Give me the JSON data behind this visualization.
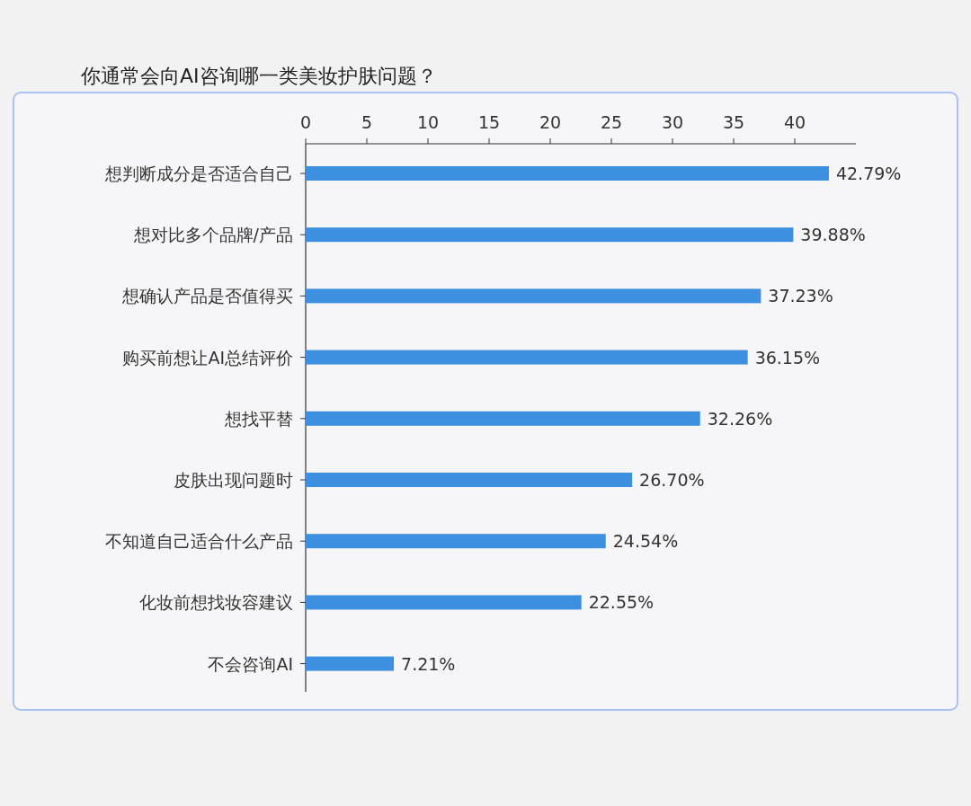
{
  "chart_data": {
    "type": "bar",
    "orientation": "horizontal",
    "title": "你通常会向AI咨询哪一类美妆护肤问题？",
    "categories": [
      "想判断成分是否适合自己",
      "想对比多个品牌/产品",
      "想确认产品是否值得买",
      "购买前想让AI总结评价",
      "想找平替",
      "皮肤出现问题时",
      "不知道自己适合什么产品",
      "化妆前想找妆容建议",
      "不会咨询AI"
    ],
    "values": [
      42.79,
      39.88,
      37.23,
      36.15,
      32.26,
      26.7,
      24.54,
      22.55,
      7.21
    ],
    "value_labels": [
      "42.79%",
      "39.88%",
      "37.23%",
      "36.15%",
      "32.26%",
      "26.70%",
      "24.54%",
      "22.55%",
      "7.21%"
    ],
    "color": "#3d8fe0",
    "xlim": [
      0,
      45
    ],
    "xticks": [
      0,
      5,
      10,
      15,
      20,
      25,
      30,
      35,
      40
    ],
    "grid": false
  }
}
